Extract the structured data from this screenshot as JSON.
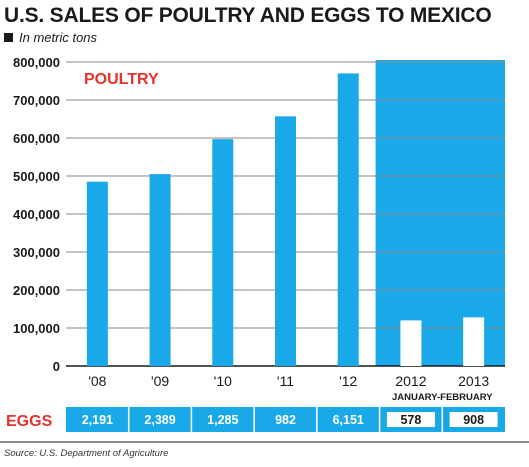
{
  "title": "U.S. SALES OF POULTRY AND EGGS TO MEXICO",
  "subtitle": "In metric tons",
  "source": "Source: U.S. Department of Agriculture",
  "colors": {
    "bar": "#1aa9e8",
    "highlight_bg": "#1aa9e8",
    "poultry_label": "#e8322d",
    "eggs_label": "#e8322d",
    "white_bar": "#ffffff"
  },
  "chart_data": {
    "type": "bar",
    "series_label": "POULTRY",
    "categories": [
      "'08",
      "'09",
      "'10",
      "'11",
      "'12",
      "2012",
      "2013"
    ],
    "period_note": "JANUARY-FEBRUARY",
    "values": [
      485000,
      505000,
      597000,
      657000,
      770000,
      120000,
      128000
    ],
    "ylim": [
      0,
      800000
    ],
    "yticks": [
      "0",
      "100,000",
      "200,000",
      "300,000",
      "400,000",
      "500,000",
      "600,000",
      "700,000",
      "800,000"
    ],
    "grid": true
  },
  "eggs": {
    "label": "EGGS",
    "values": [
      "2,191",
      "2,389",
      "1,285",
      "982",
      "6,151",
      "578",
      "908"
    ]
  }
}
